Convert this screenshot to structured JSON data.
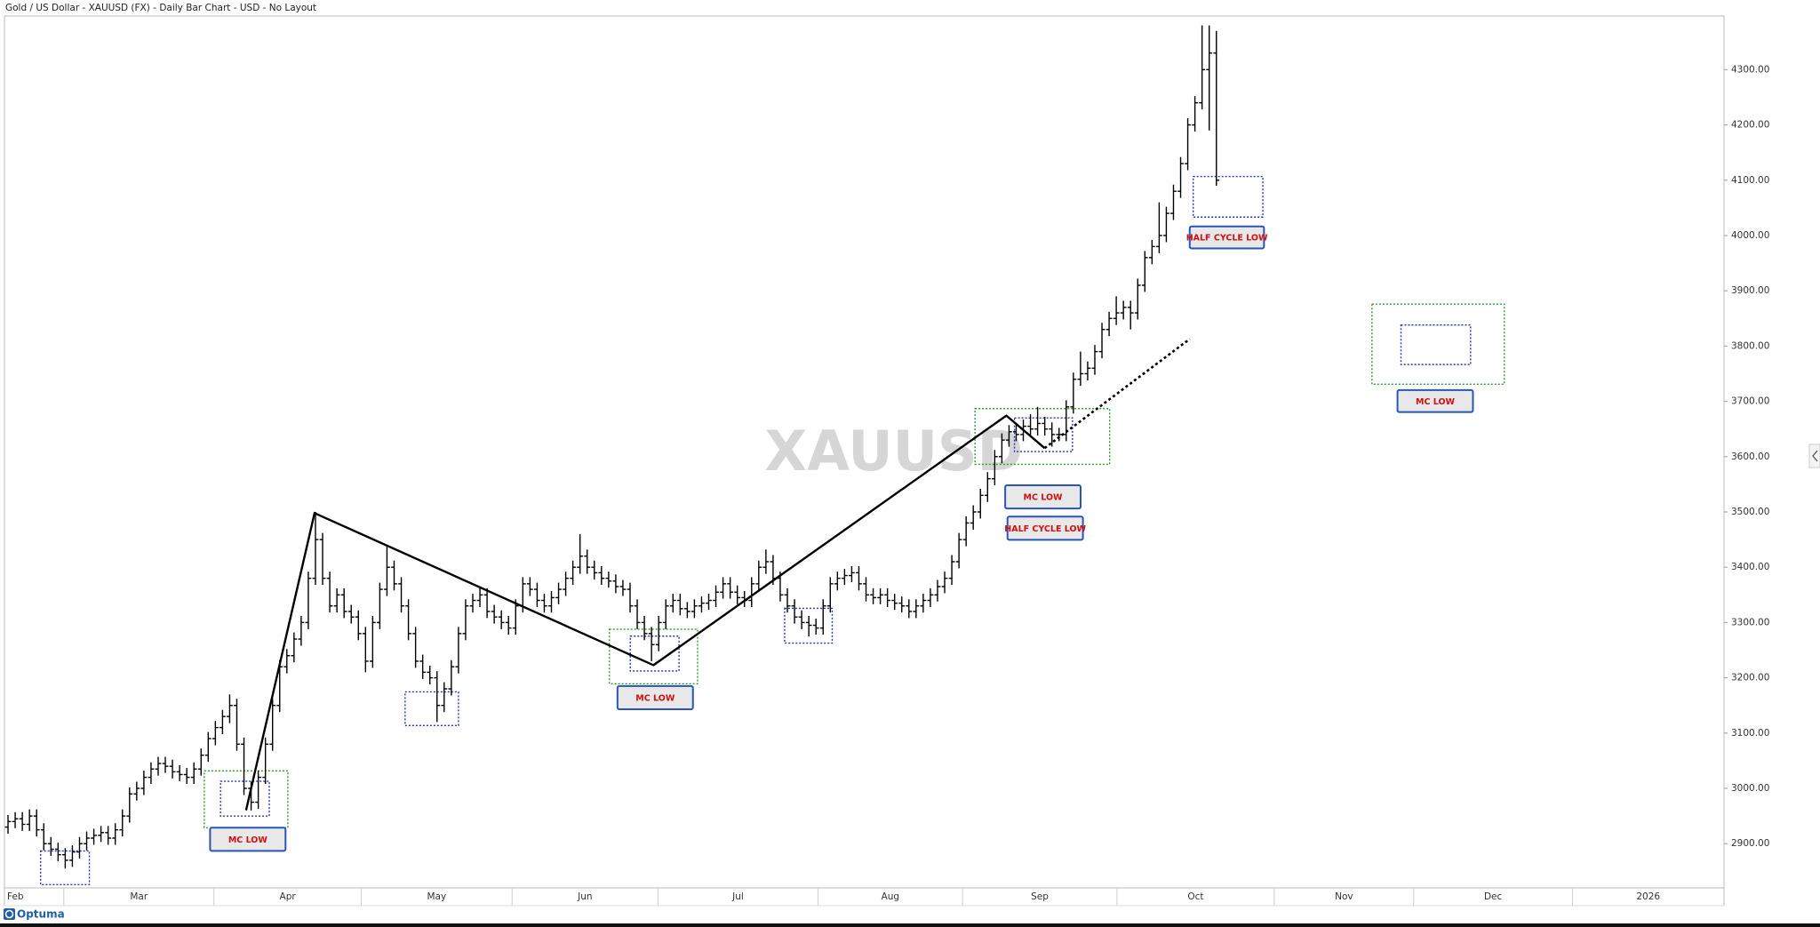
{
  "header": {
    "title": "Gold / US Dollar - XAUUSD (FX) - Daily Bar Chart - USD - No Layout"
  },
  "chart_data": {
    "type": "ohlc",
    "watermark": "XAUUSD",
    "color": "#000000",
    "open": [
      2930,
      2940,
      2945,
      2935,
      2950,
      2925,
      2900,
      2890,
      2880,
      2870,
      2885,
      2900,
      2910,
      2915,
      2920,
      2910,
      2925,
      2950,
      2990,
      3000,
      3020,
      3035,
      3045,
      3040,
      3030,
      3025,
      3020,
      3035,
      3060,
      3090,
      3110,
      3130,
      3150,
      3080,
      3000,
      2975,
      3020,
      3080,
      3150,
      3220,
      3240,
      3270,
      3300,
      3380,
      3450,
      3380,
      3330,
      3350,
      3320,
      3310,
      3280,
      3230,
      3300,
      3360,
      3400,
      3370,
      3330,
      3280,
      3230,
      3210,
      3200,
      3150,
      3180,
      3220,
      3280,
      3330,
      3340,
      3350,
      3320,
      3310,
      3300,
      3290,
      3330,
      3370,
      3360,
      3340,
      3330,
      3345,
      3360,
      3380,
      3400,
      3420,
      3400,
      3390,
      3380,
      3375,
      3365,
      3360,
      3330,
      3300,
      3280,
      3260,
      3300,
      3330,
      3340,
      3325,
      3320,
      3330,
      3335,
      3340,
      3355,
      3370,
      3355,
      3345,
      3340,
      3370,
      3400,
      3410,
      3380,
      3350,
      3330,
      3310,
      3300,
      3295,
      3290,
      3330,
      3370,
      3380,
      3385,
      3390,
      3370,
      3350,
      3345,
      3350,
      3340,
      3335,
      3330,
      3320,
      3330,
      3340,
      3350,
      3365,
      3380,
      3410,
      3450,
      3480,
      3500,
      3530,
      3560,
      3600,
      3630,
      3645,
      3640,
      3655,
      3650,
      3660,
      3650,
      3640,
      3640,
      3690,
      3740,
      3750,
      3760,
      3790,
      3830,
      3850,
      3860,
      3870,
      3860,
      3910,
      3960,
      3980,
      4000,
      4040,
      4080,
      4130,
      4200,
      4240,
      4300,
      4330
    ],
    "high": [
      2952,
      2957,
      2957,
      2962,
      2962,
      2937,
      2912,
      2902,
      2892,
      2897,
      2912,
      2922,
      2927,
      2932,
      2932,
      2937,
      2962,
      3002,
      3012,
      3032,
      3047,
      3057,
      3057,
      3052,
      3042,
      3037,
      3047,
      3072,
      3102,
      3122,
      3142,
      3170,
      3162,
      3092,
      3012,
      3032,
      3092,
      3162,
      3232,
      3252,
      3282,
      3312,
      3392,
      3500,
      3462,
      3392,
      3362,
      3362,
      3332,
      3322,
      3292,
      3312,
      3372,
      3440,
      3412,
      3382,
      3342,
      3292,
      3242,
      3222,
      3212,
      3192,
      3232,
      3292,
      3342,
      3352,
      3362,
      3362,
      3332,
      3322,
      3312,
      3342,
      3382,
      3382,
      3372,
      3352,
      3357,
      3372,
      3392,
      3412,
      3460,
      3432,
      3412,
      3402,
      3392,
      3387,
      3377,
      3372,
      3342,
      3312,
      3292,
      3312,
      3342,
      3352,
      3352,
      3337,
      3342,
      3347,
      3352,
      3367,
      3382,
      3382,
      3367,
      3357,
      3382,
      3412,
      3432,
      3422,
      3392,
      3362,
      3342,
      3322,
      3312,
      3307,
      3342,
      3382,
      3392,
      3397,
      3402,
      3402,
      3382,
      3362,
      3362,
      3362,
      3352,
      3347,
      3342,
      3342,
      3352,
      3362,
      3377,
      3392,
      3422,
      3462,
      3492,
      3512,
      3542,
      3572,
      3612,
      3642,
      3657,
      3657,
      3667,
      3677,
      3690,
      3672,
      3662,
      3652,
      3702,
      3752,
      3790,
      3772,
      3802,
      3842,
      3862,
      3890,
      3882,
      3882,
      3922,
      3972,
      3992,
      4060,
      4052,
      4092,
      4142,
      4212,
      4252,
      4380,
      4380,
      4370
    ],
    "low": [
      2918,
      2928,
      2923,
      2923,
      2913,
      2888,
      2878,
      2868,
      2855,
      2858,
      2873,
      2888,
      2898,
      2903,
      2898,
      2898,
      2913,
      2938,
      2978,
      2988,
      3008,
      3023,
      3028,
      3018,
      3013,
      3008,
      3008,
      3023,
      3048,
      3078,
      3098,
      3118,
      3068,
      2988,
      2960,
      2963,
      3008,
      3068,
      3138,
      3208,
      3228,
      3258,
      3288,
      3368,
      3368,
      3318,
      3318,
      3308,
      3298,
      3268,
      3210,
      3218,
      3288,
      3348,
      3358,
      3318,
      3268,
      3218,
      3198,
      3188,
      3120,
      3138,
      3168,
      3208,
      3268,
      3318,
      3328,
      3308,
      3298,
      3288,
      3278,
      3278,
      3318,
      3348,
      3328,
      3318,
      3318,
      3333,
      3348,
      3368,
      3388,
      3388,
      3378,
      3368,
      3363,
      3353,
      3348,
      3318,
      3288,
      3268,
      3230,
      3248,
      3288,
      3318,
      3313,
      3308,
      3308,
      3318,
      3323,
      3328,
      3343,
      3343,
      3333,
      3328,
      3328,
      3358,
      3388,
      3368,
      3338,
      3318,
      3298,
      3288,
      3275,
      3278,
      3278,
      3318,
      3358,
      3368,
      3373,
      3358,
      3338,
      3333,
      3333,
      3328,
      3323,
      3318,
      3308,
      3308,
      3318,
      3328,
      3338,
      3353,
      3368,
      3398,
      3438,
      3468,
      3488,
      3518,
      3548,
      3588,
      3618,
      3628,
      3628,
      3638,
      3638,
      3638,
      3618,
      3628,
      3628,
      3678,
      3728,
      3738,
      3748,
      3778,
      3818,
      3838,
      3848,
      3830,
      3848,
      3898,
      3948,
      3968,
      3988,
      4028,
      4068,
      4118,
      4188,
      4228,
      4190,
      4090
    ],
    "close": [
      2940,
      2945,
      2935,
      2950,
      2925,
      2900,
      2890,
      2880,
      2870,
      2885,
      2900,
      2910,
      2915,
      2920,
      2910,
      2925,
      2950,
      2990,
      3000,
      3020,
      3035,
      3045,
      3040,
      3030,
      3025,
      3020,
      3035,
      3060,
      3090,
      3110,
      3130,
      3150,
      3080,
      3000,
      2975,
      3020,
      3080,
      3150,
      3220,
      3240,
      3270,
      3300,
      3380,
      3450,
      3380,
      3330,
      3350,
      3320,
      3310,
      3280,
      3230,
      3300,
      3360,
      3400,
      3370,
      3330,
      3280,
      3230,
      3210,
      3200,
      3150,
      3180,
      3220,
      3280,
      3330,
      3340,
      3350,
      3320,
      3310,
      3300,
      3290,
      3330,
      3370,
      3360,
      3340,
      3330,
      3345,
      3360,
      3380,
      3400,
      3420,
      3400,
      3390,
      3380,
      3375,
      3365,
      3360,
      3330,
      3300,
      3280,
      3260,
      3300,
      3330,
      3340,
      3325,
      3320,
      3330,
      3335,
      3340,
      3355,
      3370,
      3355,
      3345,
      3340,
      3370,
      3400,
      3410,
      3380,
      3350,
      3330,
      3310,
      3300,
      3295,
      3290,
      3330,
      3370,
      3380,
      3385,
      3390,
      3370,
      3350,
      3345,
      3350,
      3340,
      3335,
      3330,
      3320,
      3330,
      3340,
      3350,
      3365,
      3380,
      3410,
      3450,
      3480,
      3500,
      3530,
      3560,
      3600,
      3630,
      3645,
      3640,
      3655,
      3650,
      3660,
      3650,
      3640,
      3640,
      3690,
      3740,
      3750,
      3760,
      3790,
      3830,
      3850,
      3860,
      3870,
      3860,
      3910,
      3960,
      3980,
      4000,
      4040,
      4080,
      4130,
      4200,
      4240,
      4300,
      4330,
      4100
    ],
    "xlim": [
      -0.5,
      240
    ],
    "xticks": [
      {
        "value": -6,
        "label": "Feb"
      },
      {
        "value": 7.8,
        "label": "Mar"
      },
      {
        "value": 28.8,
        "label": "Apr"
      },
      {
        "value": 49.4,
        "label": "May"
      },
      {
        "value": 70.5,
        "label": "Jun"
      },
      {
        "value": 90.9,
        "label": "Jul"
      },
      {
        "value": 113.3,
        "label": "Aug"
      },
      {
        "value": 133.5,
        "label": "Sep"
      },
      {
        "value": 155.1,
        "label": "Oct"
      },
      {
        "value": 177.1,
        "label": "Nov"
      },
      {
        "value": 196.6,
        "label": "Dec"
      },
      {
        "value": 218.8,
        "label": "2026"
      }
    ],
    "ylim": [
      2820,
      4397
    ],
    "yticks": [
      {
        "value": 2900,
        "label": "2900.00"
      },
      {
        "value": 3000,
        "label": "3000.00"
      },
      {
        "value": 3100,
        "label": "3100.00"
      },
      {
        "value": 3200,
        "label": "3200.00"
      },
      {
        "value": 3300,
        "label": "3300.00"
      },
      {
        "value": 3400,
        "label": "3400.00"
      },
      {
        "value": 3500,
        "label": "3500.00"
      },
      {
        "value": 3600,
        "label": "3600.00"
      },
      {
        "value": 3700,
        "label": "3700.00"
      },
      {
        "value": 3800,
        "label": "3800.00"
      },
      {
        "value": 3900,
        "label": "3900.00"
      },
      {
        "value": 4000,
        "label": "4000.00"
      },
      {
        "value": 4100,
        "label": "4100.00"
      },
      {
        "value": 4200,
        "label": "4200.00"
      },
      {
        "value": 4300,
        "label": "4300.00"
      }
    ],
    "annotations": [
      "MC LOW",
      "MC LOW",
      "MC LOW",
      "HALF CYCLE LOW",
      "HALF CYCLE LOW",
      "MC LOW"
    ]
  },
  "footer": {
    "logo": "Optuma"
  }
}
